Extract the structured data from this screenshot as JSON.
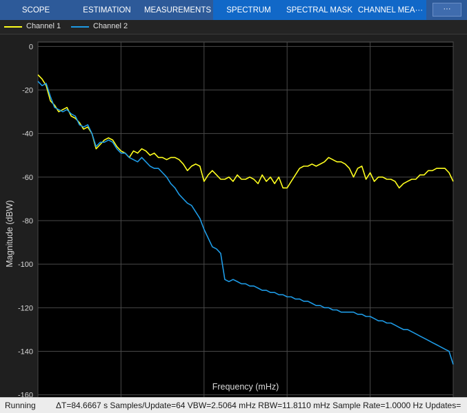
{
  "tabs": [
    {
      "label": "SCOPE"
    },
    {
      "label": "ESTIMATION"
    },
    {
      "label": "MEASUREMENTS"
    },
    {
      "label": "SPECTRUM"
    },
    {
      "label": "SPECTRAL MASK"
    },
    {
      "label": "CHANNEL MEA···"
    }
  ],
  "collapse_glyph": "···",
  "legend": [
    {
      "name": "Channel 1",
      "color": "#ffff1e"
    },
    {
      "name": "Channel 2",
      "color": "#1e9be6"
    }
  ],
  "axes": {
    "xlabel": "Frequency (mHz)",
    "ylabel": "Magnitude (dBW)"
  },
  "chart_data": {
    "type": "line",
    "xlabel": "Frequency (mHz)",
    "ylabel": "Magnitude (dBW)",
    "xlim": [
      0,
      500
    ],
    "ylim": [
      -162,
      2
    ],
    "xticks": [
      0,
      100,
      200,
      300,
      400,
      500
    ],
    "yticks": [
      0,
      -20,
      -40,
      -60,
      -80,
      -100,
      -120,
      -140,
      -160
    ],
    "grid": true,
    "legend_placement": "top-left",
    "background": "#000000",
    "series": [
      {
        "name": "Channel 1",
        "color": "#ffff1e",
        "x": [
          0,
          5,
          10,
          15,
          20,
          25,
          30,
          35,
          40,
          45,
          50,
          55,
          60,
          65,
          70,
          75,
          80,
          85,
          90,
          95,
          100,
          105,
          110,
          115,
          120,
          125,
          130,
          135,
          140,
          145,
          150,
          155,
          160,
          165,
          170,
          175,
          180,
          185,
          190,
          195,
          200,
          205,
          210,
          215,
          220,
          225,
          230,
          235,
          240,
          245,
          250,
          255,
          260,
          265,
          270,
          275,
          280,
          285,
          290,
          295,
          300,
          305,
          310,
          315,
          320,
          325,
          330,
          335,
          340,
          345,
          350,
          355,
          360,
          365,
          370,
          375,
          380,
          385,
          390,
          395,
          400,
          405,
          410,
          415,
          420,
          425,
          430,
          435,
          440,
          445,
          450,
          455,
          460,
          465,
          470,
          475,
          480,
          485,
          490,
          495,
          500
        ],
        "values": [
          -13,
          -15,
          -18,
          -25,
          -27,
          -30,
          -29,
          -28,
          -32,
          -33,
          -35,
          -38,
          -37,
          -40,
          -47,
          -45,
          -43,
          -42,
          -43,
          -46,
          -48,
          -49,
          -51,
          -48,
          -49,
          -47,
          -48,
          -50,
          -49,
          -51,
          -51,
          -52,
          -51,
          -51,
          -52,
          -54,
          -57,
          -55,
          -54,
          -55,
          -62,
          -59,
          -57,
          -59,
          -61,
          -61,
          -60,
          -62,
          -59,
          -61,
          -61,
          -60,
          -61,
          -63,
          -59,
          -62,
          -60,
          -63,
          -60,
          -65,
          -65,
          -62,
          -59,
          -56,
          -55,
          -55,
          -54,
          -55,
          -54,
          -53,
          -51,
          -52,
          -53,
          -53,
          -54,
          -56,
          -60,
          -56,
          -55,
          -61,
          -58,
          -62,
          -60,
          -60,
          -61,
          -61,
          -62,
          -65,
          -63,
          -62,
          -61,
          -61,
          -59,
          -59,
          -57,
          -57,
          -56,
          -56,
          -56,
          -58,
          -62
        ]
      },
      {
        "name": "Channel 2",
        "color": "#1e9be6",
        "x": [
          0,
          5,
          10,
          15,
          20,
          25,
          30,
          35,
          40,
          45,
          50,
          55,
          60,
          65,
          70,
          75,
          80,
          85,
          90,
          95,
          100,
          105,
          110,
          115,
          120,
          125,
          130,
          135,
          140,
          145,
          150,
          155,
          160,
          165,
          170,
          175,
          180,
          185,
          190,
          195,
          200,
          205,
          210,
          215,
          220,
          225,
          230,
          235,
          240,
          245,
          250,
          255,
          260,
          265,
          270,
          275,
          280,
          285,
          290,
          295,
          300,
          305,
          310,
          315,
          320,
          325,
          330,
          335,
          340,
          345,
          350,
          355,
          360,
          365,
          370,
          375,
          380,
          385,
          390,
          395,
          400,
          405,
          410,
          415,
          420,
          425,
          430,
          435,
          440,
          445,
          450,
          455,
          460,
          465,
          470,
          475,
          480,
          485,
          490,
          495,
          500
        ],
        "values": [
          -16,
          -18,
          -17,
          -23,
          -28,
          -29,
          -30,
          -29,
          -31,
          -32,
          -36,
          -37,
          -36,
          -40,
          -46,
          -44,
          -44,
          -43,
          -44,
          -47,
          -49,
          -49,
          -51,
          -52,
          -53,
          -51,
          -53,
          -55,
          -56,
          -56,
          -58,
          -60,
          -63,
          -65,
          -68,
          -70,
          -72,
          -73,
          -76,
          -79,
          -84,
          -88,
          -92,
          -93,
          -95,
          -107,
          -108,
          -107,
          -108,
          -109,
          -109,
          -110,
          -110,
          -111,
          -112,
          -112,
          -113,
          -113,
          -114,
          -114,
          -115,
          -115,
          -116,
          -116,
          -117,
          -117,
          -118,
          -119,
          -119,
          -120,
          -120,
          -121,
          -121,
          -122,
          -122,
          -122,
          -122,
          -123,
          -123,
          -124,
          -124,
          -125,
          -126,
          -126,
          -127,
          -127,
          -128,
          -129,
          -130,
          -130,
          -131,
          -132,
          -133,
          -134,
          -135,
          -136,
          -137,
          -138,
          -139,
          -140,
          -146
        ]
      }
    ]
  },
  "status": {
    "state": "Running",
    "details": "ΔT=84.6667 s  Samples/Update=64  VBW=2.5064 mHz  RBW=11.8110 mHz  Sample Rate=1.0000 Hz  Updates="
  }
}
